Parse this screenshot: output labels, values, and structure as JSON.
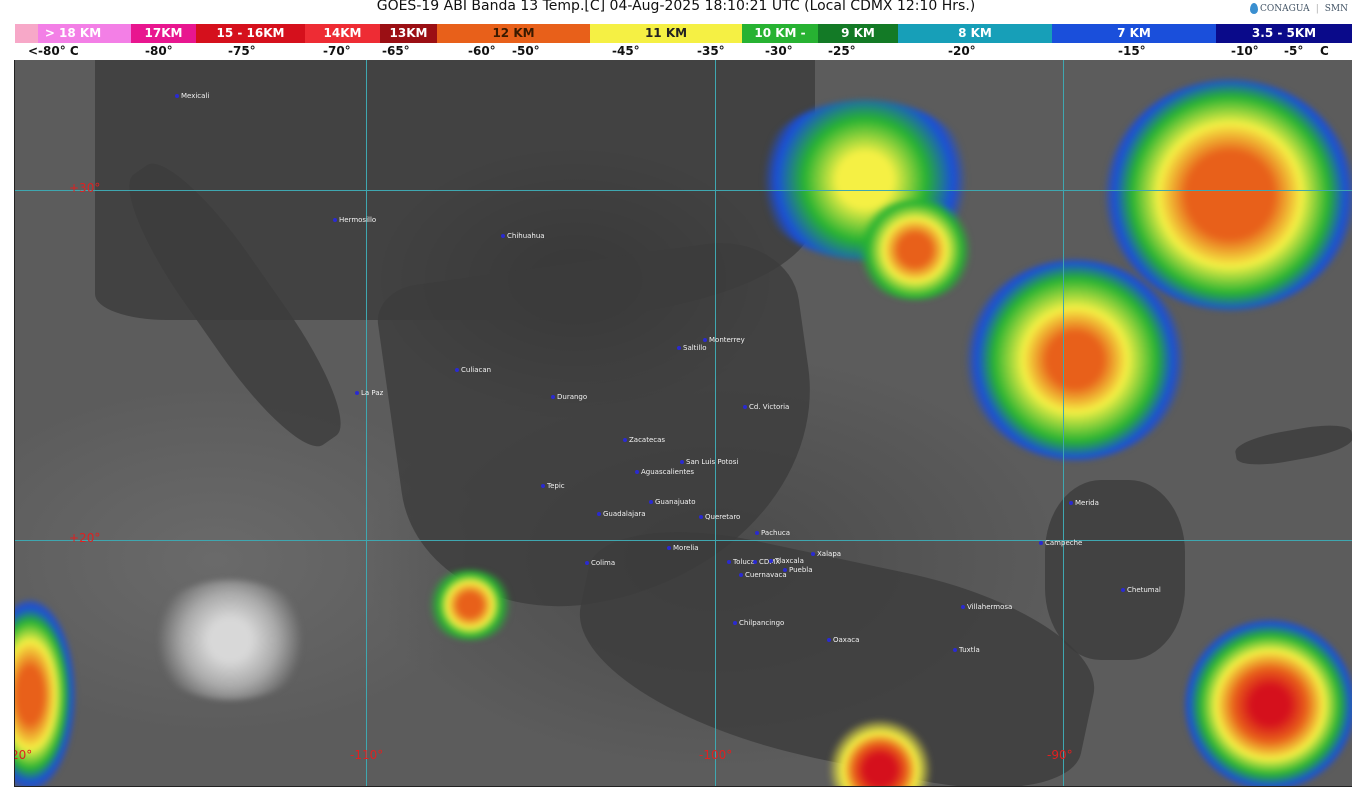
{
  "title": "GOES-19 ABI Banda 13 Temp.[C] 04-Aug-2025 18:10:21 UTC (Local CDMX  12:10 Hrs.)",
  "logos": {
    "conagua": "CONAGUA",
    "smn": "SMN"
  },
  "legend": {
    "bands": [
      {
        "label": "> 18 KM",
        "color": "#f37fe6"
      },
      {
        "label": "17KM",
        "color": "#e8168f"
      },
      {
        "label": "15 - 16KM",
        "color": "#d5101c"
      },
      {
        "label": "14KM",
        "color": "#ee2c34"
      },
      {
        "label": "13KM",
        "color": "#9b0f14"
      },
      {
        "label": "12 KM",
        "color": "#e8601a"
      },
      {
        "label": "11 KM",
        "color": "#f5f044"
      },
      {
        "label": "10 KM -",
        "color": "#27b232"
      },
      {
        "label": "9 KM",
        "color": "#137a26"
      },
      {
        "label": "8 KM",
        "color": "#179fb8"
      },
      {
        "label": "7 KM",
        "color": "#1a4fdb"
      },
      {
        "label": "3.5 - 5KM",
        "color": "#0a0a8a"
      }
    ],
    "temps": [
      "<-80° C",
      "-80°",
      "-75°",
      "-70°",
      "-65°",
      "-60°",
      "-50°",
      "-45°",
      "-35°",
      "-30°",
      "-25°",
      "-20°",
      "-15°",
      "-10°",
      "-5°",
      "C"
    ]
  },
  "grid": {
    "lat": [
      "+30°",
      "+20°"
    ],
    "lon": [
      "-120°",
      "-110°",
      "-100°",
      "-90°"
    ],
    "line_color": "#3fa7b0",
    "label_color": "#e02020"
  },
  "cities": [
    "Mexicali",
    "Hermosillo",
    "Chihuahua",
    "Monterrey",
    "Saltillo",
    "Culiacan",
    "La Paz",
    "Durango",
    "Cd. Victoria",
    "Zacatecas",
    "San Luis Potosi",
    "Aguascalientes",
    "Tepic",
    "Guanajuato",
    "Guadalajara",
    "Queretaro",
    "Pachuca",
    "Morelia",
    "Colima",
    "Toluca",
    "CDMX",
    "Tlaxcala",
    "Puebla",
    "Cuernavaca",
    "Xalapa",
    "Chilpancingo",
    "Oaxaca",
    "Villahermosa",
    "Tuxtla",
    "Campeche",
    "Merida",
    "Chetumal"
  ]
}
